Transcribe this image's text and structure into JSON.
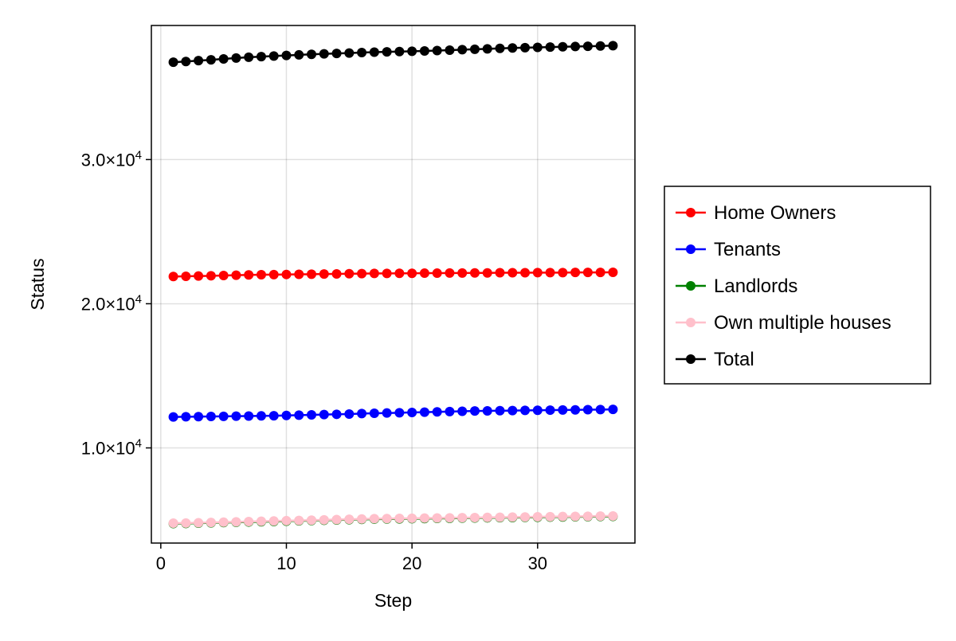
{
  "chart_data": {
    "type": "scatter",
    "title": "",
    "xlabel": "Step",
    "ylabel": "Status",
    "xlim": [
      -0.75,
      37.75
    ],
    "ylim": [
      3400,
      39300
    ],
    "x_ticks": [
      0,
      10,
      20,
      30
    ],
    "x_tick_labels": [
      "0",
      "10",
      "20",
      "30"
    ],
    "y_ticks": [
      10000,
      20000,
      30000
    ],
    "y_tick_labels": [
      {
        "mantissa": "1.0×10",
        "exp": "4"
      },
      {
        "mantissa": "2.0×10",
        "exp": "4"
      },
      {
        "mantissa": "3.0×10",
        "exp": "4"
      }
    ],
    "grid": true,
    "legend_position": "right",
    "x": [
      1,
      2,
      3,
      4,
      5,
      6,
      7,
      8,
      9,
      10,
      11,
      12,
      13,
      14,
      15,
      16,
      17,
      18,
      19,
      20,
      21,
      22,
      23,
      24,
      25,
      26,
      27,
      28,
      29,
      30,
      31,
      32,
      33,
      34,
      35,
      36
    ],
    "series": [
      {
        "name": "Home Owners",
        "color": "#ff0000",
        "values": [
          21890,
          21900,
          21920,
          21940,
          21960,
          21980,
          22000,
          22010,
          22020,
          22030,
          22040,
          22050,
          22060,
          22070,
          22080,
          22090,
          22100,
          22100,
          22110,
          22110,
          22120,
          22120,
          22130,
          22130,
          22140,
          22140,
          22150,
          22150,
          22150,
          22160,
          22160,
          22160,
          22170,
          22170,
          22170,
          22180
        ]
      },
      {
        "name": "Tenants",
        "color": "#0000ff",
        "values": [
          12150,
          12160,
          12170,
          12180,
          12190,
          12200,
          12210,
          12220,
          12230,
          12250,
          12270,
          12290,
          12310,
          12330,
          12350,
          12380,
          12400,
          12420,
          12440,
          12460,
          12480,
          12500,
          12520,
          12540,
          12560,
          12570,
          12580,
          12590,
          12600,
          12610,
          12620,
          12630,
          12640,
          12650,
          12660,
          12670
        ]
      },
      {
        "name": "Landlords",
        "color": "#008000",
        "values": [
          4750,
          4760,
          4780,
          4800,
          4820,
          4840,
          4860,
          4880,
          4900,
          4920,
          4940,
          4960,
          4980,
          5000,
          5020,
          5040,
          5060,
          5070,
          5080,
          5090,
          5100,
          5110,
          5120,
          5130,
          5140,
          5150,
          5160,
          5170,
          5180,
          5190,
          5200,
          5210,
          5220,
          5230,
          5240,
          5250
        ]
      },
      {
        "name": "Own multiple houses",
        "color": "#ffc0cb",
        "values": [
          4780,
          4790,
          4810,
          4830,
          4850,
          4870,
          4890,
          4910,
          4930,
          4950,
          4970,
          4990,
          5010,
          5030,
          5050,
          5070,
          5090,
          5100,
          5110,
          5120,
          5130,
          5140,
          5150,
          5160,
          5170,
          5180,
          5190,
          5200,
          5210,
          5220,
          5230,
          5240,
          5250,
          5260,
          5270,
          5280
        ]
      },
      {
        "name": "Total",
        "color": "#000000",
        "values": [
          36750,
          36800,
          36860,
          36920,
          36980,
          37040,
          37100,
          37140,
          37180,
          37220,
          37260,
          37300,
          37330,
          37360,
          37390,
          37420,
          37450,
          37470,
          37490,
          37510,
          37530,
          37560,
          37590,
          37620,
          37650,
          37680,
          37710,
          37740,
          37760,
          37780,
          37800,
          37820,
          37840,
          37860,
          37880,
          37900
        ]
      }
    ]
  }
}
